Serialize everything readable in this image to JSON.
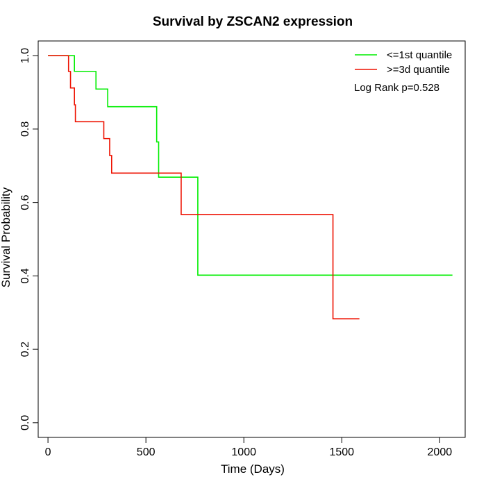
{
  "chart_data": {
    "type": "line",
    "subtype": "kaplan-meier step",
    "title": "Survival by ZSCAN2 expression",
    "xlabel": "Time (Days)",
    "ylabel": "Survival Probability",
    "xlim": [
      -50,
      2130
    ],
    "ylim": [
      -0.04,
      1.04
    ],
    "xticks": [
      0,
      500,
      1000,
      1500,
      2000
    ],
    "yticks": [
      0.0,
      0.2,
      0.4,
      0.6,
      0.8,
      1.0
    ],
    "xtick_labels": [
      "0",
      "500",
      "1000",
      "1500",
      "2000"
    ],
    "ytick_labels": [
      "0.0",
      "0.2",
      "0.4",
      "0.6",
      "0.8",
      "1.0"
    ],
    "grid": false,
    "legend_position": "top-right",
    "annotation": "Log Rank p=0.528",
    "series": [
      {
        "name": "<=1st quantile",
        "color": "#00ee00",
        "x": [
          0,
          135,
          245,
          305,
          555,
          565,
          765,
          2065
        ],
        "y": [
          1.0,
          0.957,
          0.909,
          0.861,
          0.765,
          0.669,
          0.402,
          0.402
        ]
      },
      {
        "name": ">=3d quantile",
        "color": "#ee1100",
        "x": [
          0,
          105,
          115,
          135,
          140,
          285,
          315,
          325,
          680,
          1455,
          1590
        ],
        "y": [
          1.0,
          0.957,
          0.912,
          0.866,
          0.82,
          0.774,
          0.728,
          0.68,
          0.567,
          0.283,
          0.283
        ]
      }
    ]
  }
}
